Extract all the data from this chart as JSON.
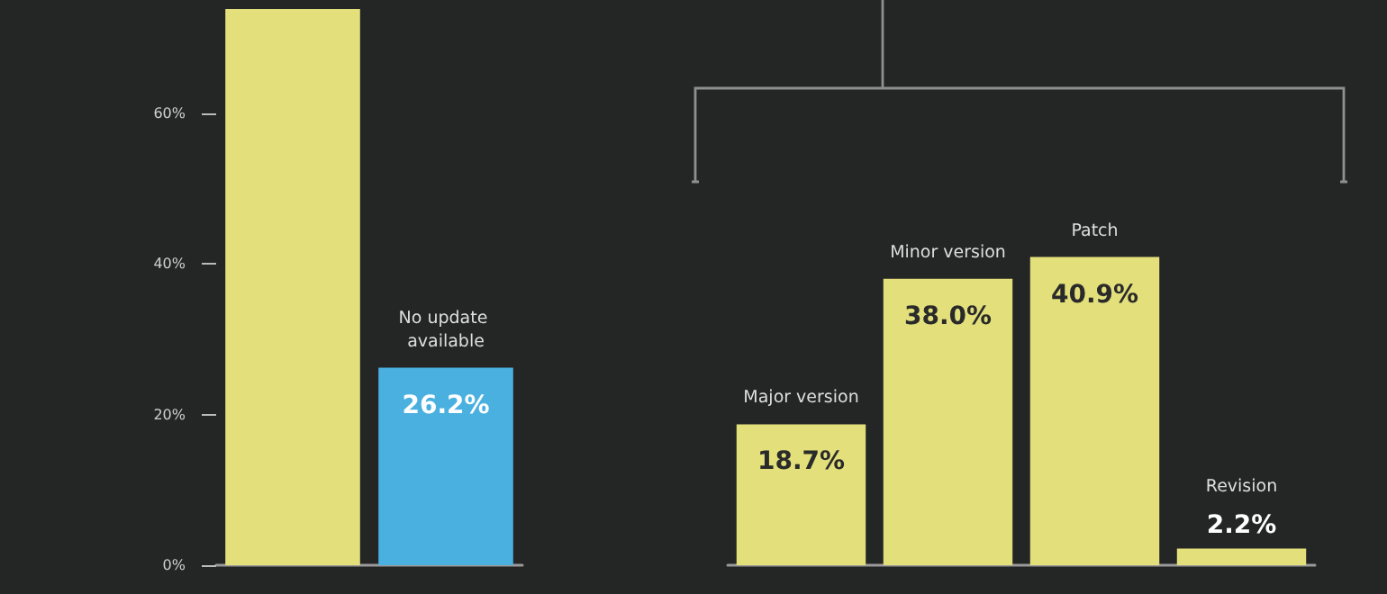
{
  "chart_data": [
    {
      "type": "bar",
      "categories": [
        null,
        "No update available"
      ],
      "values": [
        73.8,
        26.2
      ],
      "colors": [
        "#e3e07c",
        "#4ab0e0"
      ],
      "ylim": [
        0,
        75
      ],
      "yticks": [
        {
          "value": 0,
          "label": "0%"
        },
        {
          "value": 20,
          "label": "20%"
        },
        {
          "value": 40,
          "label": "40%"
        },
        {
          "value": 60,
          "label": "60%"
        }
      ],
      "value_labels": [
        null,
        "26.2%"
      ],
      "grid": false
    },
    {
      "type": "bar",
      "categories": [
        "Major version",
        "Minor version",
        "Patch",
        "Revision"
      ],
      "values": [
        18.7,
        38.0,
        40.9,
        2.2
      ],
      "color": "#e3e07c",
      "ylim": [
        0,
        75
      ],
      "value_labels": [
        "18.7%",
        "38.0%",
        "40.9%",
        "2.2%"
      ],
      "grid": false
    }
  ]
}
